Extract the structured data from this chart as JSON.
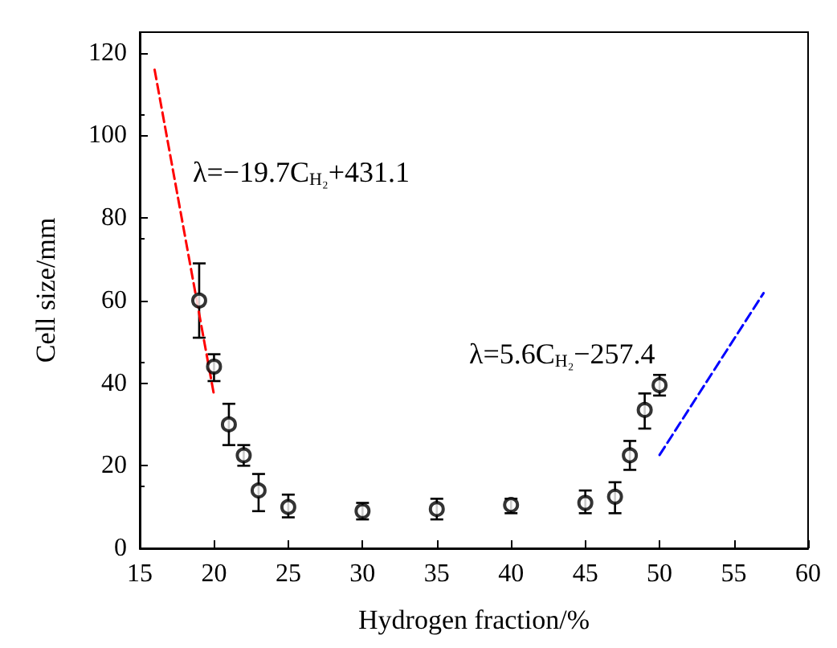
{
  "chart_data": {
    "type": "scatter",
    "xlabel": "Hydrogen fraction/%",
    "ylabel": "Cell size/mm",
    "xlim": [
      15,
      60
    ],
    "xticks": [
      15,
      20,
      25,
      30,
      35,
      40,
      45,
      50,
      55,
      60
    ],
    "ylim": [
      0,
      125
    ],
    "yticks": [
      0,
      20,
      40,
      60,
      80,
      100,
      120
    ],
    "marker": "circle",
    "grid": false,
    "series": [
      {
        "color": "#000000",
        "x": [
          19,
          20,
          21,
          22,
          23,
          25,
          30,
          35,
          40,
          45,
          47,
          48,
          49,
          50
        ],
        "values": [
          60,
          44,
          30,
          22.5,
          14,
          10,
          9,
          9.5,
          10.5,
          11,
          12.5,
          22.5,
          33.5,
          39.5
        ],
        "errors": [
          [
            51,
            69
          ],
          [
            40.5,
            47
          ],
          [
            25,
            35
          ],
          [
            20,
            25
          ],
          [
            9,
            18
          ],
          [
            7.5,
            13
          ],
          [
            7,
            11
          ],
          [
            7,
            12
          ],
          [
            8.5,
            12
          ],
          [
            8.5,
            14
          ],
          [
            8.5,
            16
          ],
          [
            19,
            26
          ],
          [
            29,
            37.5
          ],
          [
            37,
            42
          ]
        ]
      },
      {
        "type": "line",
        "color": "#ff0000",
        "line_style": "dashed",
        "marker": "none",
        "x": [
          16,
          20
        ],
        "values": [
          115.9,
          37.1
        ]
      },
      {
        "type": "line",
        "color": "#0000ff",
        "line_style": "dashed",
        "marker": "none",
        "x": [
          50,
          57
        ],
        "values": [
          22.6,
          61.8
        ]
      }
    ],
    "annotations": [
      "λ=−19.7C$_{H₂}$+431.1",
      "λ=5.6C$_{H₂}$−257.4"
    ]
  }
}
